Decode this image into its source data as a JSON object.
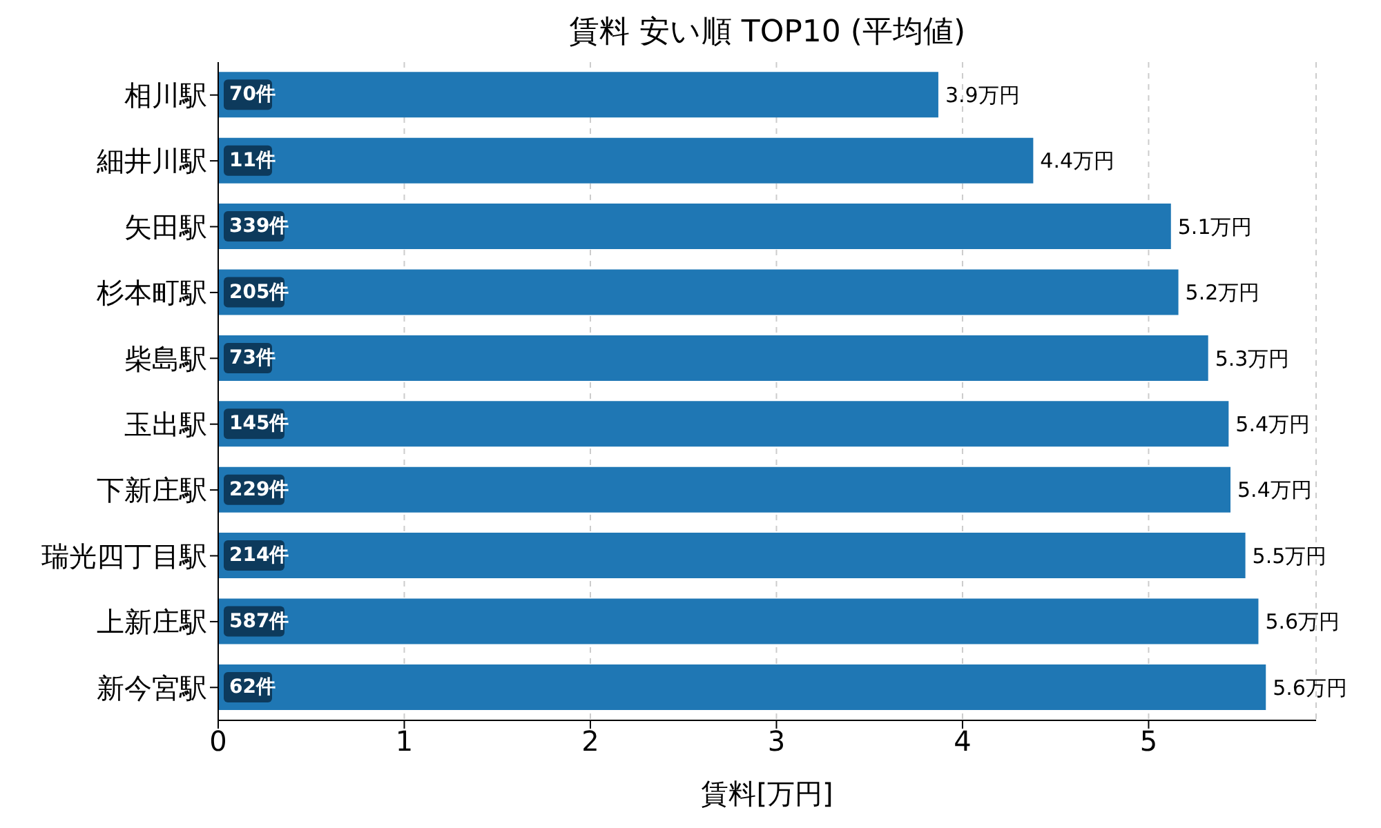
{
  "chart_data": {
    "type": "bar",
    "orientation": "horizontal",
    "title": "賃料 安い順 TOP10 (平均値)",
    "xlabel": "賃料[万円]",
    "categories": [
      "相川駅",
      "細井川駅",
      "矢田駅",
      "杉本町駅",
      "柴島駅",
      "玉出駅",
      "下新庄駅",
      "瑞光四丁目駅",
      "上新庄駅",
      "新今宮駅"
    ],
    "values": [
      3.87,
      4.38,
      5.12,
      5.16,
      5.32,
      5.43,
      5.44,
      5.52,
      5.59,
      5.63
    ],
    "value_labels": [
      "3.9万円",
      "4.4万円",
      "5.1万円",
      "5.2万円",
      "5.3万円",
      "5.4万円",
      "5.4万円",
      "5.5万円",
      "5.6万円",
      "5.6万円"
    ],
    "color": "#1f77b4",
    "xlim": [
      0,
      5.9
    ],
    "xticks": [
      0,
      1,
      2,
      3,
      4,
      5
    ],
    "grid": "x",
    "annotations": [
      {
        "text": "70件",
        "y": "相川駅"
      },
      {
        "text": "11件",
        "y": "細井川駅"
      },
      {
        "text": "339件",
        "y": "矢田駅"
      },
      {
        "text": "205件",
        "y": "杉本町駅"
      },
      {
        "text": "73件",
        "y": "柴島駅"
      },
      {
        "text": "145件",
        "y": "玉出駅"
      },
      {
        "text": "229件",
        "y": "下新庄駅"
      },
      {
        "text": "214件",
        "y": "瑞光四丁目駅"
      },
      {
        "text": "587件",
        "y": "上新庄駅"
      },
      {
        "text": "62件",
        "y": "新今宮駅"
      }
    ]
  }
}
